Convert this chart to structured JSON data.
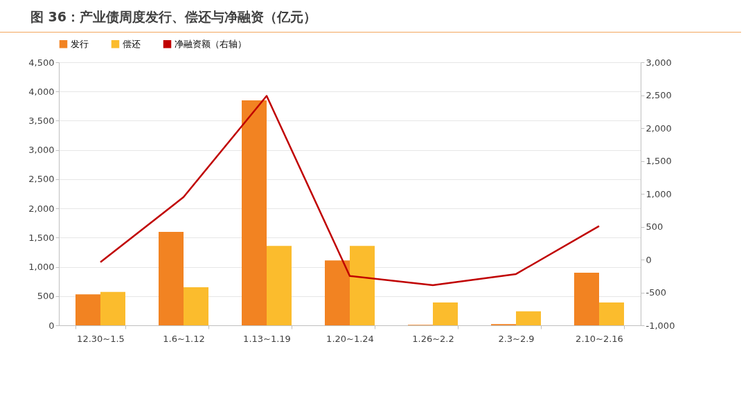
{
  "chart_data": {
    "type": "bar",
    "title": "图 36：产业债周度发行、偿还与净融资（亿元）",
    "categories": [
      "12.30~1.5",
      "1.6~1.12",
      "1.13~1.19",
      "1.20~1.24",
      "1.26~2.2",
      "2.3~2.9",
      "2.10~2.16"
    ],
    "series": [
      {
        "name": "发行",
        "color": "#f28322",
        "values": [
          530,
          1600,
          3850,
          1110,
          10,
          20,
          900
        ]
      },
      {
        "name": "偿还",
        "color": "#fbbc2d",
        "values": [
          570,
          650,
          1360,
          1360,
          390,
          240,
          390
        ]
      },
      {
        "name": "净融资额（右轴）",
        "type": "line",
        "axis": "y2",
        "color": "#c00000",
        "values": [
          -40,
          950,
          2490,
          -250,
          -390,
          -220,
          510
        ]
      }
    ],
    "ylim": [
      0,
      4500
    ],
    "yticks": [
      0,
      500,
      {
        "value": 1000,
        "label": "1,000"
      },
      {
        "value": 1500,
        "label": "1,500"
      },
      {
        "value": 2000,
        "label": "2,000"
      },
      {
        "value": 2500,
        "label": "2,500"
      },
      {
        "value": 3000,
        "label": "3,000"
      },
      {
        "value": 3500,
        "label": "3,500"
      },
      {
        "value": 4000,
        "label": "4,000"
      },
      {
        "value": 4500,
        "label": "4,500"
      }
    ],
    "y2lim": [
      -1000,
      3000
    ],
    "y2ticks": [
      {
        "value": -1000,
        "label": "-1,000"
      },
      -500,
      0,
      500,
      {
        "value": 1000,
        "label": "1,000"
      },
      {
        "value": 1500,
        "label": "1,500"
      },
      {
        "value": 2000,
        "label": "2,000"
      },
      {
        "value": 2500,
        "label": "2,500"
      },
      {
        "value": 3000,
        "label": "3,000"
      }
    ],
    "grid": "y",
    "legend": "top"
  }
}
